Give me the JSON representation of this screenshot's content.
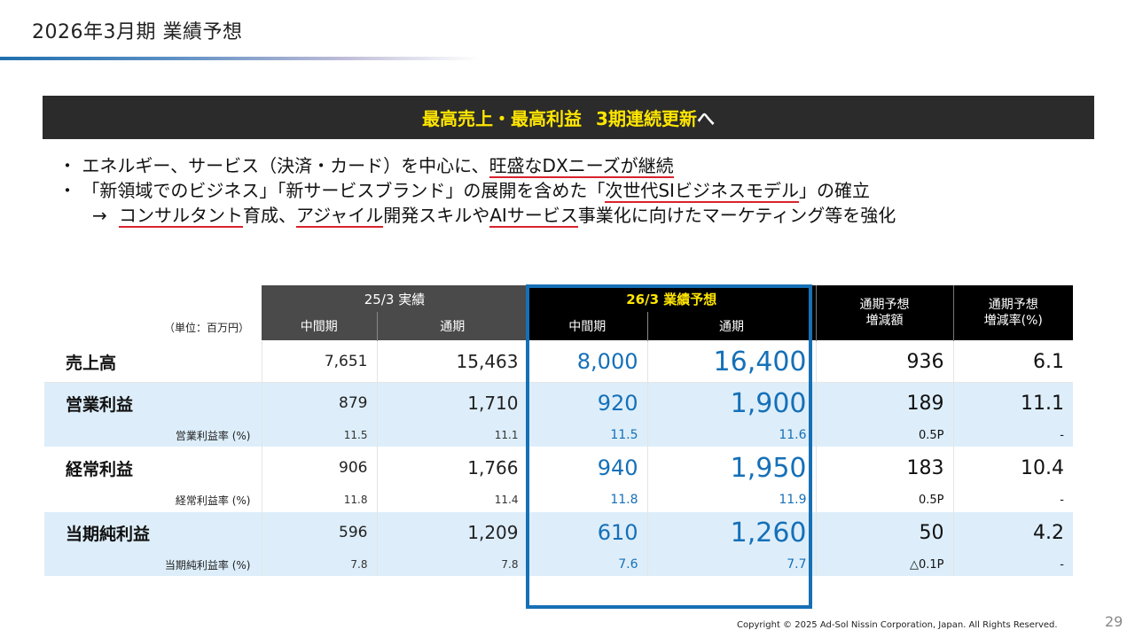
{
  "title": "2026年3月期 業績予想",
  "banner": {
    "highlight_a": "最高売上・最高利益",
    "highlight_b": "3期連続更新",
    "tail": "へ"
  },
  "bullets": {
    "b1_pre": "・ エネルギー、サービス（決済・カード）を中心に、",
    "b1_ul": "旺盛なDXニーズが継続",
    "b2_pre": "・ 「新領域でのビジネス」「新サービスブランド」の展開を含めた「",
    "b2_ul": "次世代SIビジネスモデル",
    "b2_post": "」の確立",
    "b3_arrow": "→",
    "b3_ul1": "コンサルタント",
    "b3_t1": "育成、",
    "b3_ul2": "アジャイル",
    "b3_t2": "開発スキルや",
    "b3_ul3": "AIサービス",
    "b3_t3": "事業化に向けたマーケティング等を強化"
  },
  "table": {
    "unit_label": "（単位：百万円）",
    "group_actual": "25/3  実績",
    "group_forecast": "26/3  業績予想",
    "col_change_amount": [
      "通期予想",
      "増減額"
    ],
    "col_change_rate": [
      "通期予想",
      "増減率(%)"
    ],
    "sub_half": "中間期",
    "sub_full": "通期",
    "rows": [
      {
        "label": "売上高",
        "act_half": "7,651",
        "act_full": "15,463",
        "fc_half": "8,000",
        "fc_full": "16,400",
        "chg_amt": "936",
        "chg_rate": "6.1"
      },
      {
        "label": "営業利益",
        "act_half": "879",
        "act_full": "1,710",
        "fc_half": "920",
        "fc_full": "1,900",
        "chg_amt": "189",
        "chg_rate": "11.1",
        "sub": {
          "label": "営業利益率 (%)",
          "act_half": "11.5",
          "act_full": "11.1",
          "fc_half": "11.5",
          "fc_full": "11.6",
          "chg_amt": "0.5P",
          "chg_rate": "-"
        }
      },
      {
        "label": "経常利益",
        "act_half": "906",
        "act_full": "1,766",
        "fc_half": "940",
        "fc_full": "1,950",
        "chg_amt": "183",
        "chg_rate": "10.4",
        "sub": {
          "label": "経常利益率 (%)",
          "act_half": "11.8",
          "act_full": "11.4",
          "fc_half": "11.8",
          "fc_full": "11.9",
          "chg_amt": "0.5P",
          "chg_rate": "-"
        }
      },
      {
        "label": "当期純利益",
        "act_half": "596",
        "act_full": "1,209",
        "fc_half": "610",
        "fc_full": "1,260",
        "chg_amt": "50",
        "chg_rate": "4.2",
        "sub": {
          "label": "当期純利益率 (%)",
          "act_half": "7.8",
          "act_full": "7.8",
          "fc_half": "7.6",
          "fc_full": "7.7",
          "chg_amt": "△0.1P",
          "chg_rate": "-"
        }
      }
    ]
  },
  "footer": {
    "copyright": "Copyright © 2025 Ad-Sol Nissin Corporation, Japan. All Rights Reserved.",
    "page_number": "29"
  },
  "colors": {
    "accent_blue": "#1570b8",
    "highlight_yellow": "#ffe600",
    "underline_red": "#d9232d",
    "row_tint": "#ddeefa"
  }
}
